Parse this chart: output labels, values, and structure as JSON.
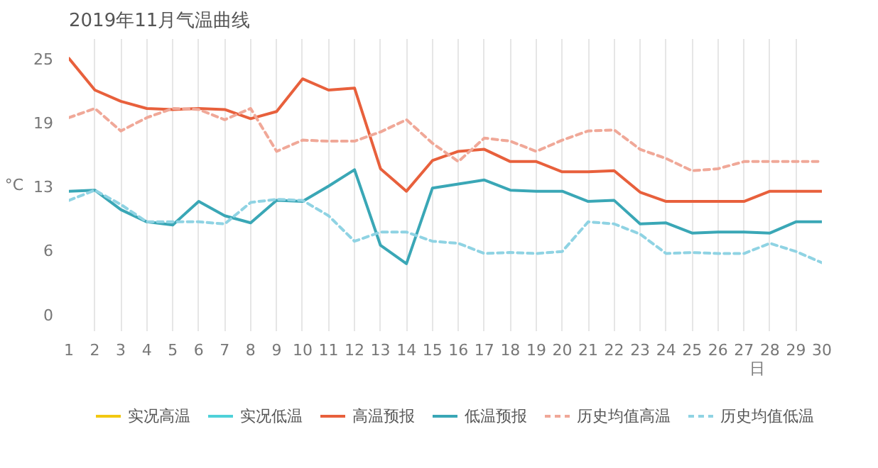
{
  "chart_data": {
    "type": "line",
    "title": "2019年11月气温曲线",
    "xlabel": "日",
    "ylabel": "°C",
    "x": [
      1,
      2,
      3,
      4,
      5,
      6,
      7,
      8,
      9,
      10,
      11,
      12,
      13,
      14,
      15,
      16,
      17,
      18,
      19,
      20,
      21,
      22,
      23,
      24,
      25,
      26,
      27,
      28,
      29,
      30
    ],
    "xlim": [
      1,
      30
    ],
    "xticks": [
      1,
      2,
      3,
      4,
      5,
      6,
      7,
      8,
      9,
      10,
      11,
      12,
      13,
      14,
      15,
      16,
      17,
      18,
      19,
      20,
      21,
      22,
      23,
      24,
      25,
      26,
      27,
      28,
      29,
      30
    ],
    "ylim": [
      -1.7,
      26.9
    ],
    "yticks": [
      0,
      {
        "value": 6.25,
        "label": "6"
      },
      {
        "value": 12.5,
        "label": "13"
      },
      {
        "value": 18.75,
        "label": "19"
      },
      25
    ],
    "grid": "x",
    "legend": "bottom",
    "marker": "none",
    "series": [
      {
        "name": "实况高温",
        "color": "#f2c811",
        "line_style": "solid",
        "values": [
          null,
          null,
          null,
          null,
          null,
          null,
          null,
          null,
          null,
          null,
          null,
          null,
          null,
          null,
          null,
          null,
          null,
          null,
          null,
          null,
          null,
          null,
          null,
          null,
          null,
          null,
          null,
          null,
          null,
          null
        ]
      },
      {
        "name": "实况低温",
        "color": "#4fd1d9",
        "line_style": "solid",
        "values": [
          null,
          null,
          null,
          null,
          null,
          null,
          null,
          null,
          null,
          null,
          null,
          null,
          null,
          null,
          null,
          null,
          null,
          null,
          null,
          null,
          null,
          null,
          null,
          null,
          null,
          null,
          null,
          null,
          null,
          null
        ]
      },
      {
        "name": "高温预报",
        "color": "#e8603c",
        "line_style": "solid",
        "values": [
          25.0,
          21.9,
          20.8,
          20.1,
          20.0,
          20.1,
          20.0,
          19.1,
          19.8,
          23.0,
          21.9,
          22.1,
          14.2,
          12.0,
          15.0,
          15.9,
          16.1,
          14.9,
          14.9,
          13.9,
          13.9,
          14.0,
          11.9,
          11.0,
          11.0,
          11.0,
          11.0,
          12.0,
          12.0,
          12.0
        ]
      },
      {
        "name": "低温预报",
        "color": "#3aa7b6",
        "line_style": "solid",
        "values": [
          12.0,
          12.1,
          10.2,
          9.0,
          8.7,
          11.0,
          9.6,
          8.9,
          11.1,
          11.0,
          12.5,
          14.1,
          6.7,
          4.9,
          12.3,
          12.7,
          13.1,
          12.1,
          12.0,
          12.0,
          11.0,
          11.1,
          8.8,
          8.9,
          7.9,
          8.0,
          8.0,
          7.9,
          9.0,
          9.0
        ]
      },
      {
        "name": "历史均值高温",
        "color": "#f0a898",
        "line_style": "dashed",
        "values": [
          19.2,
          20.1,
          17.9,
          19.2,
          20.1,
          20.0,
          19.0,
          20.1,
          15.9,
          17.0,
          16.9,
          16.9,
          17.8,
          19.0,
          16.7,
          14.9,
          17.2,
          16.9,
          15.9,
          17.0,
          17.9,
          18.0,
          16.1,
          15.2,
          14.0,
          14.2,
          14.9,
          14.9,
          14.9,
          14.9
        ]
      },
      {
        "name": "历史均值低温",
        "color": "#8fd3e3",
        "line_style": "dashed",
        "values": [
          11.1,
          12.1,
          10.7,
          9.0,
          9.0,
          9.0,
          8.8,
          10.9,
          11.2,
          11.1,
          9.6,
          7.1,
          8.0,
          8.0,
          7.1,
          6.9,
          5.9,
          6.0,
          5.9,
          6.1,
          9.0,
          8.8,
          7.8,
          5.9,
          6.0,
          5.9,
          5.9,
          6.9,
          6.1,
          5.0
        ]
      }
    ]
  }
}
